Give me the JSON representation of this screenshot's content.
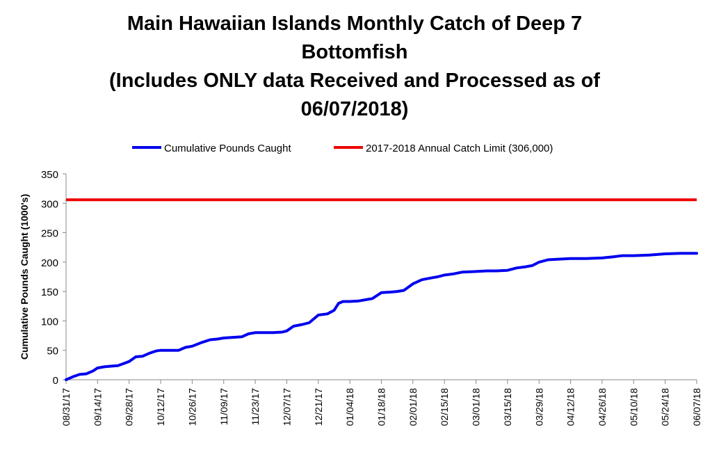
{
  "chart_data": {
    "type": "line",
    "title_lines": [
      "Main Hawaiian Islands Monthly Catch of Deep 7",
      "Bottomfish",
      "(Includes ONLY data Received and Processed as of",
      "06/07/2018)"
    ],
    "ylabel": "Cumulative Pounds Caught (1000's)",
    "xlabel": "",
    "ylim": [
      0,
      350
    ],
    "yticks": [
      0,
      50,
      100,
      150,
      200,
      250,
      300,
      350
    ],
    "xticks": [
      "08/31/17",
      "09/14/17",
      "09/28/17",
      "10/12/17",
      "10/26/17",
      "11/09/17",
      "11/23/17",
      "12/07/17",
      "12/21/17",
      "01/04/18",
      "01/18/18",
      "02/01/18",
      "02/15/18",
      "03/01/18",
      "03/15/18",
      "03/29/18",
      "04/12/18",
      "04/26/18",
      "05/10/18",
      "05/24/18",
      "06/07/18"
    ],
    "legend_position": "top",
    "grid": false,
    "colors": {
      "cumulative": "#0000ee",
      "limit": "#ee0000"
    },
    "series": [
      {
        "name": "Cumulative Pounds Caught",
        "x": [
          "08/31/17",
          "09/03/17",
          "09/06/17",
          "09/09/17",
          "09/12/17",
          "09/14/17",
          "09/17/17",
          "09/20/17",
          "09/23/17",
          "09/26/17",
          "09/28/17",
          "10/01/17",
          "10/04/17",
          "10/07/17",
          "10/10/17",
          "10/12/17",
          "10/16/17",
          "10/20/17",
          "10/23/17",
          "10/26/17",
          "10/30/17",
          "11/03/17",
          "11/06/17",
          "11/09/17",
          "11/13/17",
          "11/17/17",
          "11/20/17",
          "11/23/17",
          "11/27/17",
          "12/01/17",
          "12/05/17",
          "12/07/17",
          "12/10/17",
          "12/14/17",
          "12/17/17",
          "12/21/17",
          "12/25/17",
          "12/28/17",
          "12/30/17",
          "01/01/18",
          "01/04/18",
          "01/08/18",
          "01/11/18",
          "01/14/18",
          "01/18/18",
          "01/22/18",
          "01/25/18",
          "01/28/18",
          "02/01/18",
          "02/05/18",
          "02/09/18",
          "02/12/18",
          "02/15/18",
          "02/19/18",
          "02/23/18",
          "03/01/18",
          "03/06/18",
          "03/10/18",
          "03/15/18",
          "03/19/18",
          "03/23/18",
          "03/26/18",
          "03/29/18",
          "04/02/18",
          "04/07/18",
          "04/12/18",
          "04/19/18",
          "04/26/18",
          "05/01/18",
          "05/05/18",
          "05/10/18",
          "05/17/18",
          "05/24/18",
          "05/31/18",
          "06/07/18"
        ],
        "values": [
          0,
          5,
          9,
          10,
          15,
          20,
          22,
          23,
          24,
          28,
          31,
          39,
          40,
          45,
          49,
          50,
          50,
          50,
          55,
          57,
          63,
          68,
          69,
          71,
          72,
          73,
          78,
          80,
          80,
          80,
          81,
          83,
          91,
          94,
          97,
          110,
          112,
          118,
          130,
          133,
          133,
          134,
          136,
          138,
          148,
          149,
          150,
          152,
          163,
          170,
          173,
          175,
          178,
          180,
          183,
          184,
          185,
          185,
          186,
          190,
          192,
          194,
          200,
          204,
          205,
          206,
          206,
          207,
          209,
          211,
          211,
          212,
          214,
          215,
          215
        ]
      },
      {
        "name": "2017-2018 Annual Catch Limit (306,000)",
        "x": [
          "08/31/17",
          "06/07/18"
        ],
        "values": [
          306,
          306
        ]
      }
    ]
  }
}
